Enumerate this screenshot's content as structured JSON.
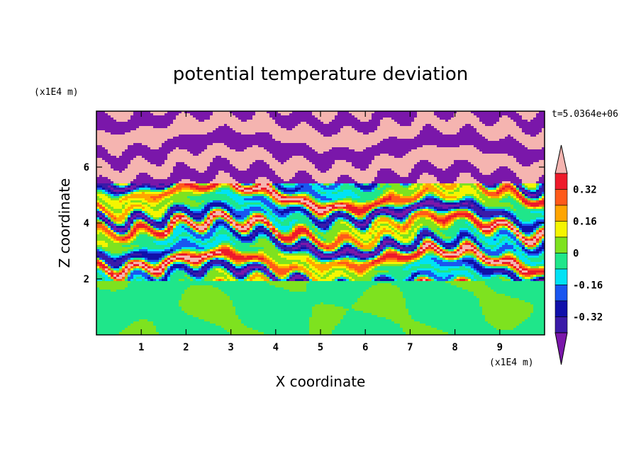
{
  "chart_data": {
    "type": "heatmap",
    "title": "potential temperature deviation",
    "xlabel": "X coordinate",
    "ylabel": "Z coordinate",
    "x_unit": "(x1E4 m)",
    "z_unit": "(x1E4 m)",
    "time_label": "t=5.0364e+06",
    "xlim": [
      0,
      10
    ],
    "ylim": [
      0,
      8
    ],
    "x_ticks": [
      "1",
      "2",
      "3",
      "4",
      "5",
      "6",
      "7",
      "8",
      "9"
    ],
    "y_ticks": [
      "2",
      "4",
      "6"
    ],
    "colorbar": {
      "tick_labels": [
        "0.32",
        "0.16",
        "0",
        "-0.16",
        "-0.32"
      ],
      "levels": [
        {
          "range": "< -0.40",
          "color": "#7a17aa"
        },
        {
          "range": "-0.40 to -0.32",
          "color": "#3a1aa8"
        },
        {
          "range": "-0.32 to -0.24",
          "color": "#1010aa"
        },
        {
          "range": "-0.24 to -0.16",
          "color": "#1a56f0"
        },
        {
          "range": "-0.16 to -0.08",
          "color": "#00e2f5"
        },
        {
          "range": "-0.08 to 0",
          "color": "#1fe68a"
        },
        {
          "range": "0 to 0.08",
          "color": "#7ee21f"
        },
        {
          "range": "0.08 to 0.16",
          "color": "#f5f500"
        },
        {
          "range": "0.16 to 0.24",
          "color": "#ffa500"
        },
        {
          "range": "0.24 to 0.32",
          "color": "#ff5a1a"
        },
        {
          "range": "0.32 to 0.40",
          "color": "#ee1a2a"
        },
        {
          "range": "> 0.40",
          "color": "#f5b4b0"
        }
      ]
    },
    "layers": [
      {
        "z_range": [
          0,
          1.95
        ],
        "description_colors": [
          "#7ee21f",
          "#1fe68a"
        ]
      },
      {
        "z_range": [
          1.95,
          5.5
        ],
        "description_colors": [
          "#f5b4b0",
          "#7a17aa",
          "#ff5a1a",
          "#f5f500",
          "#7ee21f",
          "#00e2f5",
          "#1a56f0"
        ]
      },
      {
        "z_range": [
          5.5,
          8.0
        ],
        "description_colors": [
          "#f5b4b0",
          "#7a17aa"
        ]
      }
    ]
  }
}
